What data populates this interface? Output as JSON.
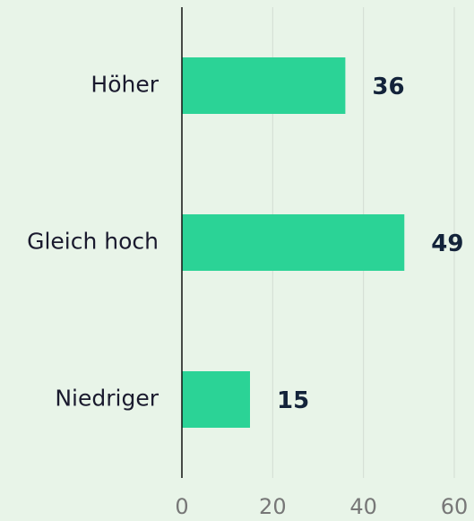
{
  "chart_data": {
    "type": "bar",
    "orientation": "horizontal",
    "categories": [
      "Höher",
      "Gleich hoch",
      "Niedriger"
    ],
    "values": [
      36,
      49,
      15
    ],
    "color": "#2bd396",
    "xlim": [
      0,
      60
    ],
    "xticks": [
      0,
      20,
      40,
      60
    ],
    "grid": true
  }
}
